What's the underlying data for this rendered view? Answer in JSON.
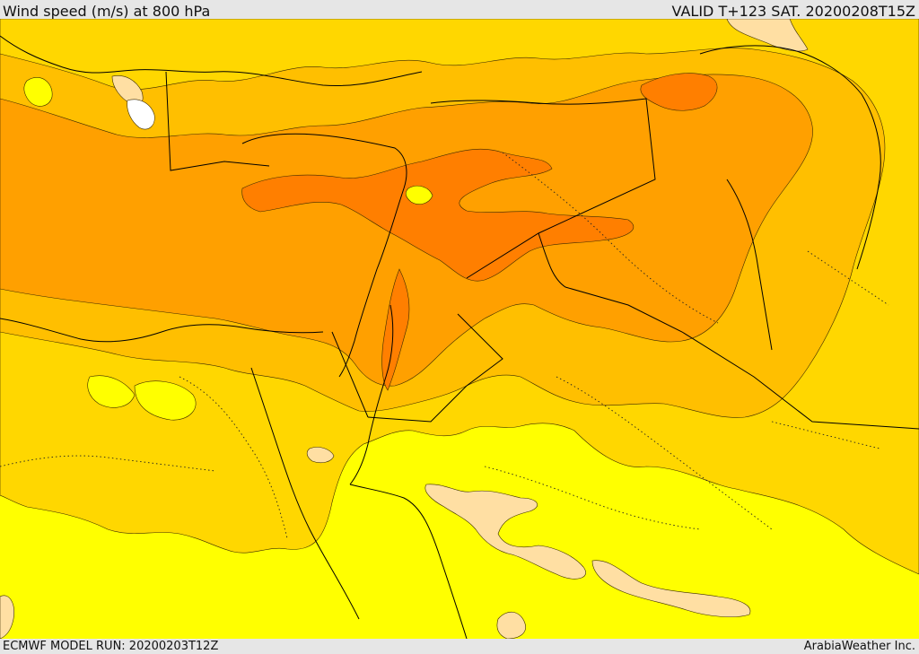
{
  "header": {
    "title": "Wind speed (m/s) at 800 hPa",
    "valid": "VALID T+123 SAT. 20200208T15Z"
  },
  "footer": {
    "model_run": "ECMWF MODEL RUN: 20200203T12Z",
    "credit": "ArabiaWeather Inc."
  },
  "colors": {
    "background": "#e6e6e6",
    "band_white": "#ffffff",
    "band_peach": "#ffdfa3",
    "band_yellow": "#ffff00",
    "band_gold": "#ffd700",
    "band_light_orange": "#ffbf00",
    "band_orange": "#ffa000",
    "band_dark_orange": "#ff7f00",
    "coastline": "#000000"
  }
}
